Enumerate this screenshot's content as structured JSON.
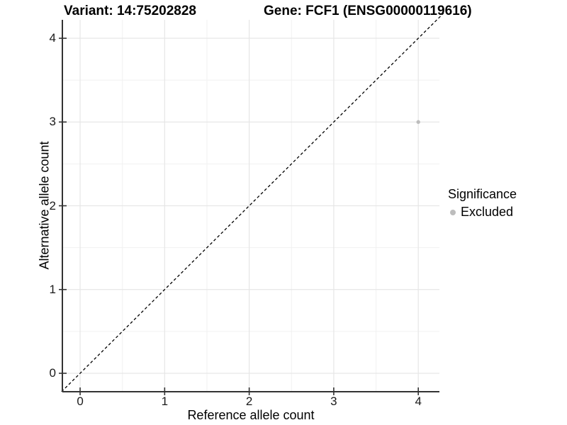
{
  "header": {
    "variant_title": "Variant: 14:75202828",
    "gene_title": "Gene: FCF1 (ENSG00000119616)"
  },
  "chart_data": {
    "type": "scatter",
    "xlabel": "Reference allele count",
    "ylabel": "Alternative allele count",
    "x_ticks": [
      0,
      1,
      2,
      3,
      4
    ],
    "y_ticks": [
      0,
      1,
      2,
      3,
      4
    ],
    "x_minor_ticks": [
      0.5,
      1.5,
      2.5,
      3.5
    ],
    "y_minor_ticks": [
      0.5,
      1.5,
      2.5,
      3.5
    ],
    "xlim": [
      -0.21,
      4.25
    ],
    "ylim": [
      -0.22,
      4.22
    ],
    "grid": "major and minor, light gray on white",
    "points": [
      {
        "x": 4,
        "y": 3,
        "series": "Excluded"
      }
    ],
    "reference_line": {
      "kind": "identity y=x",
      "style": "dashed",
      "x1": -0.22,
      "y1": -0.22,
      "x2": 4.3,
      "y2": 4.3
    },
    "legend": {
      "title": "Significance",
      "position": "right",
      "items": [
        {
          "label": "Excluded",
          "color": "#bdbdbd"
        }
      ]
    },
    "colors": {
      "point": "#bdbdbd",
      "grid_major": "#e6e6e6",
      "grid_minor": "#f1f1f1",
      "axis": "#333333",
      "reference_line": "#000000",
      "background": "#ffffff"
    }
  }
}
